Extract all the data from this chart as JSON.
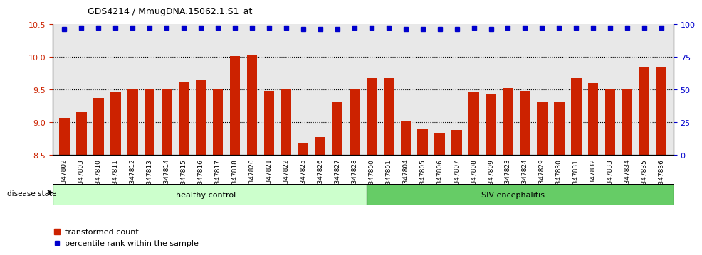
{
  "title": "GDS4214 / MmugDNA.15062.1.S1_at",
  "samples": [
    "GSM347802",
    "GSM347803",
    "GSM347810",
    "GSM347811",
    "GSM347812",
    "GSM347813",
    "GSM347814",
    "GSM347815",
    "GSM347816",
    "GSM347817",
    "GSM347818",
    "GSM347820",
    "GSM347821",
    "GSM347822",
    "GSM347825",
    "GSM347826",
    "GSM347827",
    "GSM347828",
    "GSM347800",
    "GSM347801",
    "GSM347804",
    "GSM347805",
    "GSM347806",
    "GSM347807",
    "GSM347808",
    "GSM347809",
    "GSM347823",
    "GSM347824",
    "GSM347829",
    "GSM347830",
    "GSM347831",
    "GSM347832",
    "GSM347833",
    "GSM347834",
    "GSM347835",
    "GSM347836"
  ],
  "bar_values": [
    9.07,
    9.15,
    9.37,
    9.47,
    9.5,
    9.5,
    9.5,
    9.62,
    9.65,
    9.5,
    10.01,
    10.02,
    9.48,
    9.5,
    8.68,
    8.77,
    9.3,
    9.5,
    9.67,
    9.67,
    9.02,
    8.9,
    8.84,
    8.88,
    9.47,
    9.42,
    9.52,
    9.48,
    9.32,
    9.32,
    9.67,
    9.6,
    9.5,
    9.5,
    9.85,
    9.84
  ],
  "percentile_values": [
    96,
    97,
    97,
    97,
    97,
    97,
    97,
    97,
    97,
    97,
    97,
    97,
    97,
    97,
    96,
    96,
    96,
    97,
    97,
    97,
    96,
    96,
    96,
    96,
    97,
    96,
    97,
    97,
    97,
    97,
    97,
    97,
    97,
    97,
    97,
    97
  ],
  "healthy_control_count": 18,
  "ylim_left": [
    8.5,
    10.5
  ],
  "ylim_right": [
    0,
    100
  ],
  "yticks_left": [
    8.5,
    9.0,
    9.5,
    10.0,
    10.5
  ],
  "yticks_right": [
    0,
    25,
    50,
    75,
    100
  ],
  "bar_color": "#cc2200",
  "dot_color": "#0000cc",
  "healthy_bg": "#ccffcc",
  "siv_bg": "#66cc66",
  "axis_bg": "#e8e8e8",
  "legend_items": [
    "transformed count",
    "percentile rank within the sample"
  ]
}
